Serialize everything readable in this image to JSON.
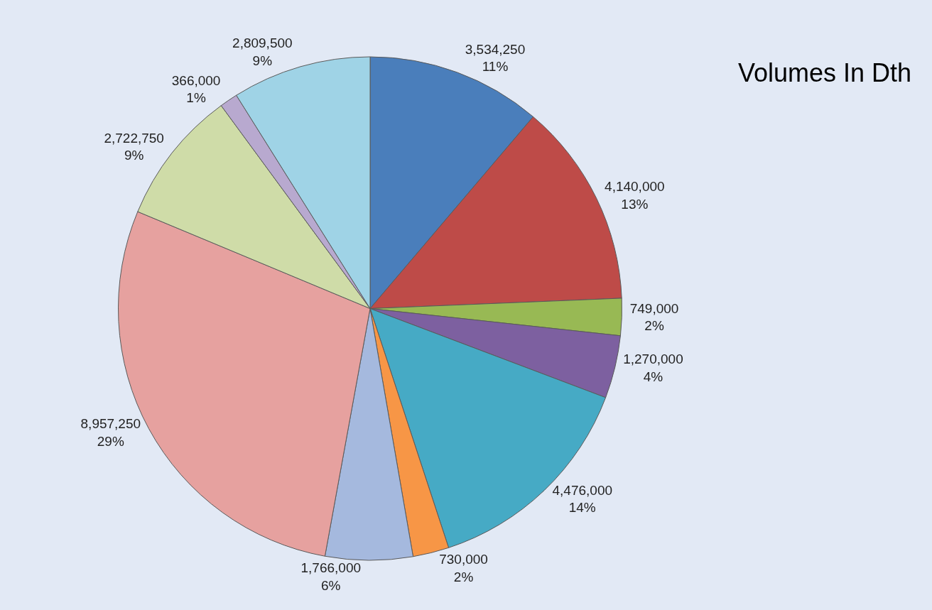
{
  "chart_data": {
    "type": "pie",
    "title": "Volumes In Dth",
    "categories": [
      null,
      null,
      null,
      null,
      null,
      null,
      null,
      null,
      null,
      null,
      null
    ],
    "values": [
      3534250,
      4140000,
      749000,
      1270000,
      4476000,
      730000,
      1766000,
      8957250,
      2722750,
      366000,
      2809500
    ],
    "colors": [
      "#4a7ebb",
      "#be4b48",
      "#98b954",
      "#7d60a0",
      "#46aac5",
      "#f79646",
      "#a5b9de",
      "#e6a19f",
      "#cfdca8",
      "#b8a9cf",
      "#9fd3e6"
    ],
    "value_labels": [
      "3,534,250\n11%",
      "4,140,000\n13%",
      "749,000\n2%",
      "1,270,000\n4%",
      "4,476,000\n14%",
      "730,000\n2%",
      "1,766,000\n6%",
      "8,957,250\n29%",
      "2,722,750\n9%",
      "366,000\n1%",
      "2,809,500\n9%"
    ]
  }
}
